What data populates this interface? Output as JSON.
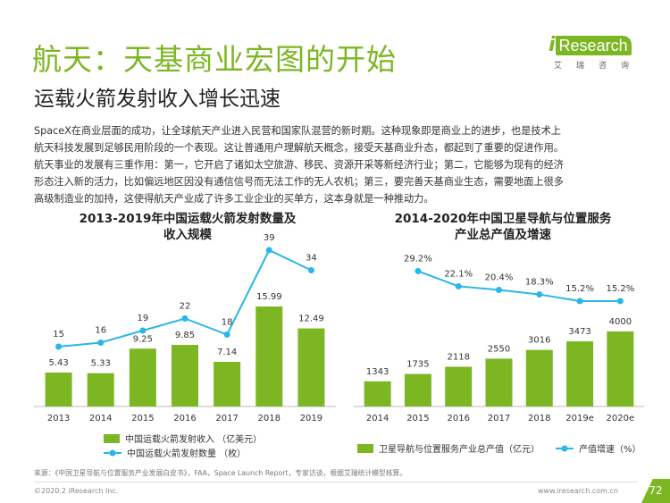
{
  "header": {
    "title": "航天：天基商业宏图的开始",
    "subtitle": "运载火箭发射收入增长迅速",
    "logo_brand": "iResearch",
    "logo_sub": [
      "艾",
      "瑞",
      "咨",
      "询"
    ]
  },
  "intro": [
    "SpaceX在商业层面的成功，让全球航天产业进入民营和国家队混营的新时期。这种现象即是商业上的进步，也是技术上",
    "航天科技发展到足够民用阶段的一个表现。这让普通用户理解航天概念，接受天基商业升态，都起到了重要的促进作用。",
    "航天事业的发展有三重作用：第一，它开启了诸如太空旅游、移民、资源开采等新经济行业；第二，它能够为现有的经济",
    "形态注入新的活力，比如偏远地区因没有通信信号而无法工作的无人农机；第三，要完善天基商业生态，需要地面上很多",
    "高级制造业的加持，这使得航天产业成了许多工业企业的买单方，这本身就是一种推动力。"
  ],
  "colors": {
    "bar": "#7cb723",
    "line": "#29b6e8",
    "accent": "#7cb723"
  },
  "chart_data": [
    {
      "type": "bar",
      "title_lines": [
        "2013-2019年中国运载火箭发射数量及",
        "收入规模"
      ],
      "categories": [
        "2013",
        "2014",
        "2015",
        "2016",
        "2017",
        "2018",
        "2019"
      ],
      "series": [
        {
          "name": "中国运载火箭发射收入 （亿美元）",
          "type": "bar",
          "values": [
            5.43,
            5.33,
            9.25,
            9.85,
            7.14,
            15.99,
            12.49
          ]
        },
        {
          "name": "中国运载火箭发射数量 （枚）",
          "type": "line",
          "values": [
            15,
            16,
            19,
            22,
            18,
            39,
            34
          ]
        }
      ],
      "legend_position": "bottom"
    },
    {
      "type": "bar",
      "title_lines": [
        "2014-2020年中国卫星导航与位置服务",
        "产业总产值及增速"
      ],
      "categories": [
        "2014",
        "2015",
        "2016",
        "2017",
        "2018",
        "2019e",
        "2020e"
      ],
      "series": [
        {
          "name": "卫星导航与位置服务产业总产值（亿元）",
          "type": "bar",
          "values": [
            1343,
            1735,
            2118,
            2550,
            3016,
            3473,
            4000
          ]
        },
        {
          "name": "产值增速（%）",
          "type": "line",
          "values": [
            null,
            29.2,
            22.1,
            20.4,
            18.3,
            15.2,
            15.2
          ],
          "labels": [
            "",
            "29.2%",
            "22.1%",
            "20.4%",
            "18.3%",
            "15.2%",
            "15.2%"
          ]
        }
      ],
      "legend_position": "bottom"
    }
  ],
  "footer": {
    "source": "来源：《中国卫星导航与位置服务产业发展白皮书》，FAA，Space Launch Report，专家访谈，根据艾瑞统计模型核算。",
    "copyright": "©2020.2 iResearch Inc.",
    "website": "www.iresearch.com.cn",
    "page": "72"
  }
}
